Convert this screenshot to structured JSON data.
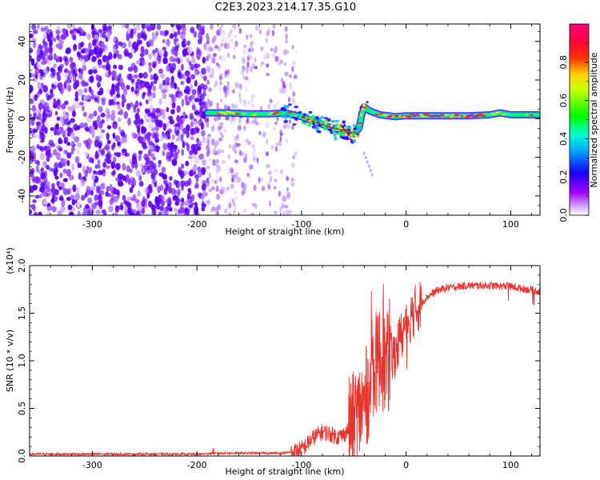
{
  "title": "C2E3.2023.214.17.35.G10",
  "chart_data": [
    {
      "type": "heatmap",
      "xlabel": "Height of straight line (km)",
      "ylabel": "Frequency (Hz)",
      "xlim": [
        -360,
        128
      ],
      "ylim": [
        -50,
        49
      ],
      "x_ticks": [
        -300,
        -200,
        -100,
        0,
        100
      ],
      "x_tick_labels": [
        "-300",
        "-200",
        "-100",
        "0",
        "100"
      ],
      "y_ticks": [
        -40,
        -20,
        0,
        20,
        40
      ],
      "y_tick_labels": [
        "-40",
        "-20",
        "0",
        "20",
        "40"
      ],
      "colorbar": {
        "label": "Normalized spectral amplitude",
        "range": [
          0,
          1
        ],
        "ticks": [
          0.0,
          0.2,
          0.4,
          0.6,
          0.8
        ],
        "tick_labels": [
          "0.0",
          "0.2",
          "0.4",
          "0.6",
          "0.8"
        ],
        "colors": [
          "#ffffff",
          "#a000ff",
          "#0000ff",
          "#00e0ff",
          "#00ff00",
          "#ffff00",
          "#ff0000",
          "#ff0080"
        ]
      },
      "noise_region_x": [
        -360,
        -190
      ],
      "sparse_noise_x": [
        -190,
        -105
      ],
      "ridge": {
        "x": [
          -190,
          -170,
          -150,
          -130,
          -115,
          -100,
          -90,
          -80,
          -70,
          -60,
          -50,
          -45,
          -42,
          -40,
          -35,
          -25,
          -10,
          0,
          20,
          40,
          60,
          80,
          90,
          100,
          110,
          128
        ],
        "y": [
          3,
          3,
          2.5,
          2.5,
          3,
          1,
          -1,
          -3,
          -5,
          -6,
          -8,
          -5,
          3,
          6,
          4,
          2,
          1,
          1.5,
          1.5,
          1.5,
          1.5,
          2,
          3,
          2,
          2,
          2
        ]
      }
    },
    {
      "type": "line",
      "xlabel": "Height of straight line (km)",
      "ylabel": "SNR (10 * v/v)",
      "y_multiplier": "(x10⁴)",
      "xlim": [
        -360,
        128
      ],
      "ylim": [
        0,
        2.0
      ],
      "x_ticks": [
        -300,
        -200,
        -100,
        0,
        100
      ],
      "x_tick_labels": [
        "-300",
        "-200",
        "-100",
        "0",
        "100"
      ],
      "y_ticks": [
        0,
        0.5,
        1.0,
        1.5,
        2.0
      ],
      "y_tick_labels": [
        "0.0",
        "0.5",
        "1.0",
        "1.5",
        "2.0"
      ],
      "series": [
        {
          "color": "#e8332e",
          "x": [
            -360,
            -300,
            -250,
            -200,
            -180,
            -170,
            -150,
            -120,
            -110,
            -100,
            -95,
            -90,
            -85,
            -80,
            -75,
            -70,
            -65,
            -60,
            -55,
            -50,
            -45,
            -40,
            -35,
            -32,
            -30,
            -27,
            -25,
            -22,
            -20,
            -15,
            -10,
            -5,
            0,
            10,
            20,
            30,
            40,
            60,
            80,
            100,
            110,
            128
          ],
          "y": [
            0.02,
            0.02,
            0.02,
            0.02,
            0.03,
            0.03,
            0.03,
            0.03,
            0.04,
            0.07,
            0.12,
            0.18,
            0.22,
            0.25,
            0.24,
            0.22,
            0.2,
            0.22,
            0.28,
            0.35,
            0.45,
            0.55,
            0.75,
            0.85,
            0.95,
            1.0,
            1.05,
            1.0,
            0.95,
            1.0,
            1.1,
            1.25,
            1.4,
            1.55,
            1.67,
            1.74,
            1.77,
            1.79,
            1.79,
            1.78,
            1.76,
            1.73
          ]
        }
      ]
    }
  ]
}
